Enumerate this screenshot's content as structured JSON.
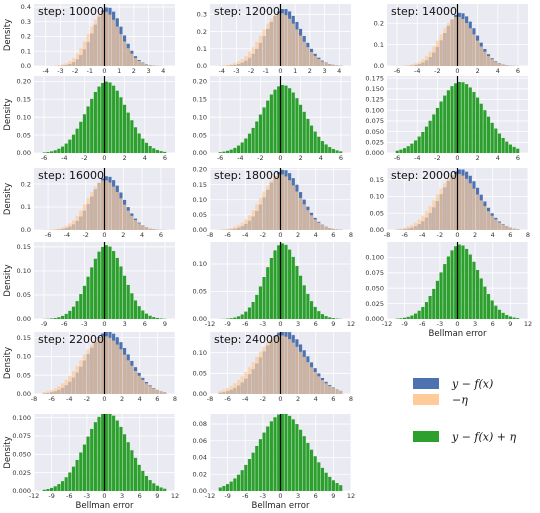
{
  "chart_data": {
    "type": "bar",
    "ylabel": "Density",
    "xlabel": "Bellman error",
    "colors": {
      "y_minus_f": "#4c72b0",
      "neg_eta": "#ffcc99",
      "y_minus_f_plus_eta": "#2ca02c",
      "overlap": "#a8897e",
      "background": "#eaeaf2",
      "grid": "#ffffff",
      "zero_line": "#000000"
    },
    "grid": true,
    "legend_position": "right",
    "legend": [
      {
        "key": "y_minus_f",
        "label": "y − f(x)"
      },
      {
        "key": "neg_eta",
        "label": "−η"
      },
      {
        "key": "y_minus_f_plus_eta",
        "label": "y − f(x) + η"
      }
    ],
    "panels": [
      {
        "step": "step: 10000",
        "row": 0,
        "col": 0,
        "xlim": [
          -4.8,
          4.8
        ],
        "xticks": [
          -4,
          -3,
          -2,
          -1,
          0,
          1,
          2,
          3,
          4
        ],
        "ylim": [
          0,
          0.42
        ],
        "yticks": [
          0.0,
          0.1,
          0.2,
          0.3,
          0.4
        ],
        "sigma_top": 1.0,
        "bias": 0.22,
        "sigma_bottom": 2.0,
        "bottom_xlim": [
          -7,
          7
        ],
        "bottom_xticks": [
          -6,
          -4,
          -2,
          0,
          2,
          4,
          6
        ],
        "bottom_ylim": [
          0,
          0.215
        ],
        "bottom_yticks": [
          0.0,
          0.05,
          0.1,
          0.15,
          0.2
        ],
        "show_xlabel": false
      },
      {
        "step": "step: 12000",
        "row": 0,
        "col": 1,
        "xlim": [
          -4.8,
          4.8
        ],
        "xticks": [
          -4,
          -3,
          -2,
          -1,
          0,
          1,
          2,
          3,
          4
        ],
        "ylim": [
          0,
          0.36
        ],
        "yticks": [
          0.0,
          0.1,
          0.2,
          0.3
        ],
        "sigma_top": 1.2,
        "bias": 0.25,
        "sigma_bottom": 2.1,
        "bottom_xlim": [
          -7,
          7
        ],
        "bottom_xticks": [
          -6,
          -4,
          -2,
          0,
          2,
          4,
          6
        ],
        "bottom_ylim": [
          0,
          0.215
        ],
        "bottom_yticks": [
          0.0,
          0.05,
          0.1,
          0.15,
          0.2
        ],
        "show_xlabel": false
      },
      {
        "step": "step: 14000",
        "row": 0,
        "col": 2,
        "xlim": [
          -7,
          7
        ],
        "xticks": [
          -6,
          -4,
          -2,
          0,
          2,
          4,
          6
        ],
        "ylim": [
          0,
          0.29
        ],
        "yticks": [
          0.0,
          0.1,
          0.2
        ],
        "sigma_top": 1.6,
        "bias": 0.3,
        "sigma_bottom": 2.4,
        "bottom_xlim": [
          -7,
          7
        ],
        "bottom_xticks": [
          -6,
          -4,
          -2,
          0,
          2,
          4,
          6
        ],
        "bottom_ylim": [
          0,
          0.18
        ],
        "bottom_yticks": [
          0.0,
          0.025,
          0.05,
          0.075,
          0.1,
          0.125,
          0.15,
          0.175
        ],
        "show_xlabel": false
      },
      {
        "step": "step: 16000",
        "row": 1,
        "col": 0,
        "xlim": [
          -7.5,
          7.5
        ],
        "xticks": [
          -6,
          -4,
          -2,
          0,
          2,
          4,
          6
        ],
        "ylim": [
          0,
          0.27
        ],
        "yticks": [
          0.0,
          0.1,
          0.2
        ],
        "sigma_top": 1.7,
        "bias": 0.3,
        "sigma_bottom": 2.6,
        "bottom_xlim": [
          -10.5,
          10.5
        ],
        "bottom_xticks": [
          -9,
          -6,
          -3,
          0,
          3,
          6,
          9
        ],
        "bottom_ylim": [
          0,
          0.16
        ],
        "bottom_yticks": [
          0.0,
          0.05,
          0.1,
          0.15
        ],
        "show_xlabel": false
      },
      {
        "step": "step: 18000",
        "row": 1,
        "col": 1,
        "xlim": [
          -8,
          8
        ],
        "xticks": [
          -8,
          -6,
          -4,
          -2,
          0,
          2,
          4,
          6,
          8
        ],
        "ylim": [
          0,
          0.205
        ],
        "yticks": [
          0.0,
          0.05,
          0.1,
          0.15,
          0.2
        ],
        "sigma_top": 2.0,
        "bias": 0.35,
        "sigma_bottom": 2.9,
        "bottom_xlim": [
          -12,
          12
        ],
        "bottom_xticks": [
          -12,
          -9,
          -6,
          -3,
          0,
          3,
          6,
          9,
          12
        ],
        "bottom_ylim": [
          0,
          0.14
        ],
        "bottom_yticks": [
          0.0,
          0.05,
          0.1
        ],
        "show_xlabel": false
      },
      {
        "step": "step: 20000",
        "row": 1,
        "col": 2,
        "xlim": [
          -8,
          8
        ],
        "xticks": [
          -8,
          -6,
          -4,
          -2,
          0,
          2,
          4,
          6,
          8
        ],
        "ylim": [
          0,
          0.185
        ],
        "yticks": [
          0.0,
          0.05,
          0.1,
          0.15
        ],
        "sigma_top": 2.2,
        "bias": 0.4,
        "sigma_bottom": 3.3,
        "bottom_xlim": [
          -12,
          12
        ],
        "bottom_xticks": [
          -12,
          -9,
          -6,
          -3,
          0,
          3,
          6,
          9,
          12
        ],
        "bottom_ylim": [
          0,
          0.125
        ],
        "bottom_yticks": [
          0.0,
          0.025,
          0.05,
          0.075,
          0.1
        ],
        "show_xlabel": true
      },
      {
        "step": "step: 22000",
        "row": 2,
        "col": 0,
        "xlim": [
          -8,
          8
        ],
        "xticks": [
          -8,
          -6,
          -4,
          -2,
          0,
          2,
          4,
          6,
          8
        ],
        "ylim": [
          0,
          0.165
        ],
        "yticks": [
          0.0,
          0.05,
          0.1,
          0.15
        ],
        "sigma_top": 2.4,
        "bias": 0.4,
        "sigma_bottom": 3.7,
        "bottom_xlim": [
          -12,
          12
        ],
        "bottom_xticks": [
          -12,
          -9,
          -6,
          -3,
          0,
          3,
          6,
          9,
          12
        ],
        "bottom_ylim": [
          0,
          0.105
        ],
        "bottom_yticks": [
          0.0,
          0.025,
          0.05,
          0.075,
          0.1
        ],
        "show_xlabel": true
      },
      {
        "step": "step: 24000",
        "row": 2,
        "col": 1,
        "xlim": [
          -8,
          8
        ],
        "xticks": [
          -8,
          -6,
          -4,
          -2,
          0,
          2,
          4,
          6,
          8
        ],
        "ylim": [
          0,
          0.15
        ],
        "yticks": [
          0.0,
          0.05,
          0.1
        ],
        "sigma_top": 2.6,
        "bias": 0.45,
        "sigma_bottom": 4.3,
        "bottom_xlim": [
          -12,
          12
        ],
        "bottom_xticks": [
          -12,
          -9,
          -6,
          -3,
          0,
          3,
          6,
          9,
          12
        ],
        "bottom_ylim": [
          0,
          0.092
        ],
        "bottom_yticks": [
          0.0,
          0.02,
          0.04,
          0.06,
          0.08
        ],
        "show_xlabel": true
      }
    ]
  }
}
